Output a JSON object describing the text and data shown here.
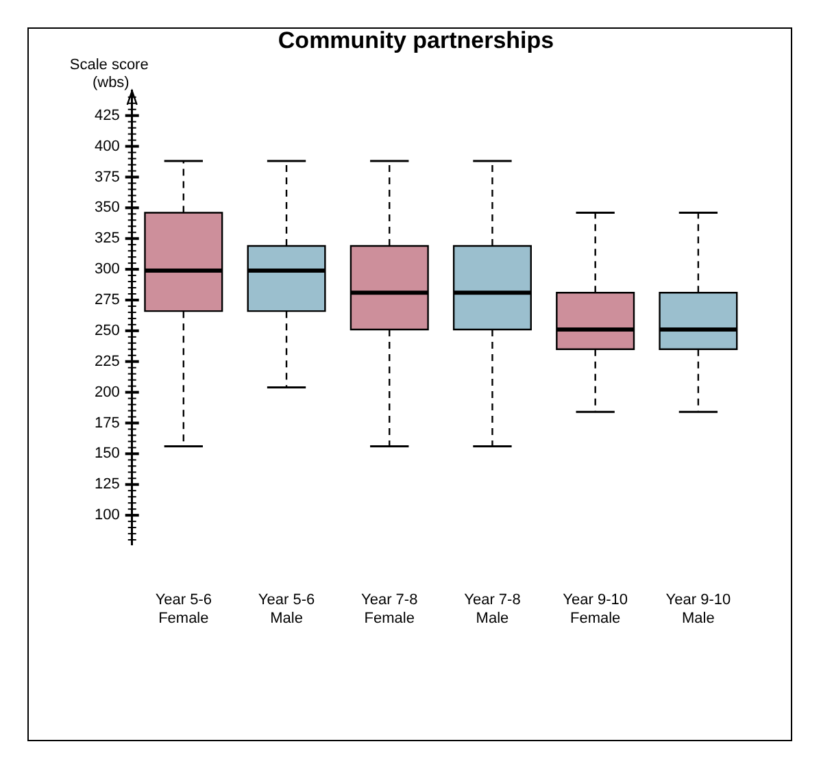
{
  "chart_data": {
    "type": "box",
    "title": "Community partnerships",
    "ylabel": "Scale score (wbs)",
    "categories": [
      "Year 5-6 Female",
      "Year 5-6 Male",
      "Year 7-8 Female",
      "Year 7-8 Male",
      "Year 9-10 Female",
      "Year 9-10 Male"
    ],
    "colors": [
      "#cd8f9b",
      "#9bbfce",
      "#cd8f9b",
      "#9bbfce",
      "#cd8f9b",
      "#9bbfce"
    ],
    "boxes": [
      {
        "low": 156,
        "q1": 266,
        "median": 299,
        "q3": 346,
        "high": 388
      },
      {
        "low": 204,
        "q1": 266,
        "median": 299,
        "q3": 319,
        "high": 388
      },
      {
        "low": 156,
        "q1": 251,
        "median": 281,
        "q3": 319,
        "high": 388
      },
      {
        "low": 156,
        "q1": 251,
        "median": 281,
        "q3": 319,
        "high": 388
      },
      {
        "low": 184,
        "q1": 235,
        "median": 251,
        "q3": 281,
        "high": 346
      },
      {
        "low": 184,
        "q1": 235,
        "median": 251,
        "q3": 281,
        "high": 346
      }
    ],
    "ylim": [
      76,
      445
    ],
    "yticks": [
      {
        "value": 80,
        "label": null
      },
      {
        "value": 85,
        "label": null
      },
      {
        "value": 90,
        "label": null
      },
      {
        "value": 95,
        "label": null
      },
      100,
      {
        "value": 105,
        "label": null
      },
      {
        "value": 110,
        "label": null
      },
      {
        "value": 115,
        "label": null
      },
      {
        "value": 120,
        "label": null
      },
      125,
      {
        "value": 130,
        "label": null
      },
      {
        "value": 135,
        "label": null
      },
      {
        "value": 140,
        "label": null
      },
      {
        "value": 145,
        "label": null
      },
      150,
      {
        "value": 155,
        "label": null
      },
      {
        "value": 160,
        "label": null
      },
      {
        "value": 165,
        "label": null
      },
      {
        "value": 170,
        "label": null
      },
      175,
      {
        "value": 180,
        "label": null
      },
      {
        "value": 185,
        "label": null
      },
      {
        "value": 190,
        "label": null
      },
      {
        "value": 195,
        "label": null
      },
      200,
      {
        "value": 205,
        "label": null
      },
      {
        "value": 210,
        "label": null
      },
      {
        "value": 215,
        "label": null
      },
      {
        "value": 220,
        "label": null
      },
      225,
      {
        "value": 230,
        "label": null
      },
      {
        "value": 235,
        "label": null
      },
      {
        "value": 240,
        "label": null
      },
      {
        "value": 245,
        "label": null
      },
      250,
      {
        "value": 255,
        "label": null
      },
      {
        "value": 260,
        "label": null
      },
      {
        "value": 265,
        "label": null
      },
      {
        "value": 270,
        "label": null
      },
      275,
      {
        "value": 280,
        "label": null
      },
      {
        "value": 285,
        "label": null
      },
      {
        "value": 290,
        "label": null
      },
      {
        "value": 295,
        "label": null
      },
      300,
      {
        "value": 305,
        "label": null
      },
      {
        "value": 310,
        "label": null
      },
      {
        "value": 315,
        "label": null
      },
      {
        "value": 320,
        "label": null
      },
      325,
      {
        "value": 330,
        "label": null
      },
      {
        "value": 335,
        "label": null
      },
      {
        "value": 340,
        "label": null
      },
      {
        "value": 345,
        "label": null
      },
      350,
      {
        "value": 355,
        "label": null
      },
      {
        "value": 360,
        "label": null
      },
      {
        "value": 365,
        "label": null
      },
      {
        "value": 370,
        "label": null
      },
      375,
      {
        "value": 380,
        "label": null
      },
      {
        "value": 385,
        "label": null
      },
      {
        "value": 390,
        "label": null
      },
      {
        "value": 395,
        "label": null
      },
      400,
      {
        "value": 405,
        "label": null
      },
      {
        "value": 410,
        "label": null
      },
      {
        "value": 415,
        "label": null
      },
      {
        "value": 420,
        "label": null
      },
      425,
      {
        "value": 430,
        "label": null
      },
      {
        "value": 435,
        "label": null
      },
      {
        "value": 440,
        "label": null
      }
    ],
    "grid": false,
    "legend": false
  }
}
